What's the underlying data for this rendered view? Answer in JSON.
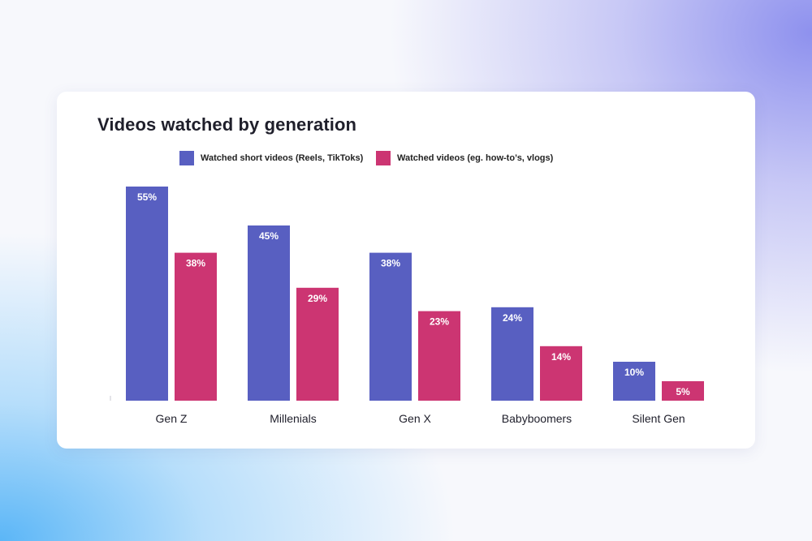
{
  "chart_data": {
    "type": "bar",
    "title": "Videos watched by generation",
    "categories": [
      "Gen Z",
      "Millenials",
      "Gen X",
      "Babyboomers",
      "Silent Gen"
    ],
    "series": [
      {
        "name": "Watched short videos (Reels, TikToks)",
        "color": "#585fc1",
        "values": [
          55,
          45,
          38,
          24,
          10
        ],
        "labels": [
          "55%",
          "45%",
          "38%",
          "24%",
          "10%"
        ]
      },
      {
        "name": "Watched videos (eg. how-to’s, vlogs)",
        "color": "#cc3572",
        "values": [
          38,
          29,
          23,
          14,
          5
        ],
        "labels": [
          "38%",
          "29%",
          "23%",
          "14%",
          "5%"
        ]
      }
    ],
    "ylim": [
      0,
      55
    ],
    "xlabel": "",
    "ylabel": "",
    "grid": false,
    "legend": "top"
  }
}
